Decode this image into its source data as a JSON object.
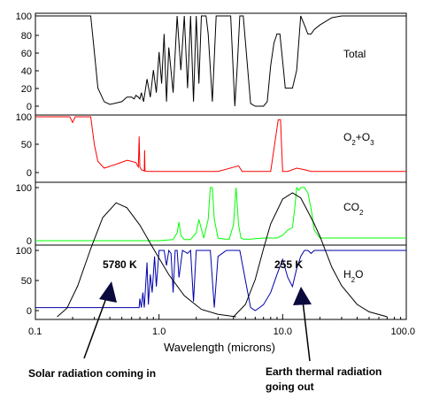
{
  "chart_data": {
    "type": "line",
    "xlabel": "Wavelength (microns)",
    "xscale": "log",
    "xlim": [
      0.1,
      100
    ],
    "xticks": [
      "0.1",
      "1.0",
      "10.0",
      "100.0"
    ],
    "panels": [
      {
        "name": "Total",
        "ylim": [
          0,
          100
        ],
        "yticks": [
          "0",
          "20",
          "40",
          "60",
          "80",
          "100"
        ],
        "color": "#000000",
        "series": {
          "x": [
            0.1,
            0.28,
            0.3,
            0.32,
            0.36,
            0.4,
            0.5,
            0.55,
            0.6,
            0.63,
            0.65,
            0.68,
            0.7,
            0.72,
            0.75,
            0.8,
            0.85,
            0.9,
            0.95,
            1.0,
            1.05,
            1.1,
            1.15,
            1.2,
            1.3,
            1.4,
            1.5,
            1.6,
            1.7,
            1.8,
            1.9,
            2.0,
            2.1,
            2.2,
            2.4,
            2.5,
            2.7,
            2.9,
            3.2,
            3.5,
            3.8,
            4.1,
            4.3,
            4.5,
            4.8,
            5.5,
            6.0,
            6.5,
            7.0,
            7.5,
            8.0,
            8.5,
            9.0,
            9.5,
            10.0,
            10.5,
            11,
            12,
            13,
            14,
            15,
            16,
            17,
            18,
            20,
            25,
            30,
            40,
            70,
            100
          ],
          "values": [
            100,
            100,
            60,
            20,
            5,
            2,
            5,
            10,
            10,
            8,
            12,
            10,
            8,
            15,
            5,
            30,
            10,
            40,
            15,
            60,
            25,
            80,
            5,
            65,
            15,
            100,
            40,
            100,
            20,
            100,
            5,
            100,
            25,
            100,
            100,
            80,
            5,
            100,
            100,
            100,
            100,
            0,
            45,
            100,
            100,
            3,
            0,
            0,
            0,
            5,
            45,
            70,
            80,
            80,
            50,
            20,
            20,
            20,
            40,
            100,
            90,
            80,
            80,
            85,
            90,
            98,
            100,
            100,
            100,
            100
          ]
        }
      },
      {
        "name": "O2+O3",
        "ylim": [
          0,
          100
        ],
        "yticks": [
          "0",
          "50",
          "100"
        ],
        "color": "#ff0000",
        "series": {
          "x": [
            0.1,
            0.19,
            0.2,
            0.21,
            0.28,
            0.3,
            0.32,
            0.36,
            0.45,
            0.55,
            0.6,
            0.65,
            0.68,
            0.69,
            0.7,
            0.72,
            0.76,
            0.765,
            0.77,
            0.8,
            1.0,
            2.0,
            3.0,
            4.4,
            4.7,
            5.0,
            8.0,
            9.2,
            9.6,
            10.0,
            11,
            13,
            15,
            17,
            20,
            50,
            100
          ],
          "values": [
            100,
            100,
            90,
            100,
            100,
            50,
            20,
            8,
            15,
            22,
            20,
            18,
            10,
            65,
            10,
            5,
            3,
            40,
            3,
            2,
            2,
            2,
            2,
            12,
            2,
            2,
            2,
            95,
            95,
            2,
            2,
            8,
            5,
            2,
            2,
            2,
            2
          ]
        }
      },
      {
        "name": "CO2",
        "ylim": [
          0,
          100
        ],
        "yticks": [
          "0",
          "100"
        ],
        "color": "#00ff00",
        "series": {
          "x": [
            0.1,
            1.0,
            1.3,
            1.4,
            1.45,
            1.5,
            1.6,
            1.8,
            2.0,
            2.1,
            2.3,
            2.5,
            2.6,
            2.7,
            2.8,
            3.0,
            3.4,
            3.7,
            4.0,
            4.2,
            4.4,
            4.6,
            4.8,
            5.5,
            7.0,
            9.0,
            10,
            11,
            12,
            12.5,
            13,
            13.5,
            14,
            15,
            16,
            17,
            18,
            20,
            50,
            100
          ],
          "values": [
            0,
            0,
            2,
            15,
            35,
            10,
            2,
            2,
            15,
            40,
            5,
            40,
            100,
            100,
            40,
            5,
            3,
            3,
            30,
            100,
            30,
            5,
            3,
            3,
            5,
            5,
            10,
            20,
            25,
            60,
            100,
            95,
            100,
            100,
            90,
            60,
            20,
            5,
            5,
            5
          ]
        }
      },
      {
        "name": "H2O",
        "ylim": [
          0,
          100
        ],
        "yticks": [
          "0",
          "50",
          "100"
        ],
        "color": "#0000aa",
        "series": {
          "x": [
            0.1,
            0.69,
            0.7,
            0.72,
            0.74,
            0.76,
            0.8,
            0.82,
            0.85,
            0.88,
            0.92,
            0.95,
            1.0,
            1.1,
            1.15,
            1.2,
            1.25,
            1.3,
            1.35,
            1.4,
            1.45,
            1.55,
            1.7,
            1.8,
            1.9,
            2.0,
            2.1,
            2.3,
            2.6,
            2.8,
            3.0,
            3.5,
            4.0,
            4.5,
            5.0,
            5.5,
            6.0,
            6.5,
            7,
            8,
            9,
            10,
            11,
            12,
            13,
            14,
            15,
            16,
            17,
            18,
            20,
            25,
            30,
            50,
            100
          ],
          "values": [
            5,
            5,
            20,
            5,
            30,
            5,
            80,
            10,
            60,
            30,
            90,
            40,
            100,
            100,
            75,
            100,
            95,
            30,
            100,
            100,
            55,
            100,
            95,
            100,
            15,
            100,
            100,
            100,
            100,
            5,
            90,
            100,
            100,
            100,
            50,
            5,
            0,
            5,
            10,
            30,
            60,
            85,
            55,
            40,
            70,
            90,
            100,
            100,
            95,
            100,
            100,
            100,
            100,
            100,
            100
          ]
        }
      }
    ],
    "blackbody": [
      {
        "name": "Solar",
        "x": [
          0.15,
          0.18,
          0.22,
          0.28,
          0.35,
          0.45,
          0.55,
          0.7,
          0.9,
          1.2,
          1.6,
          2.2,
          3.0,
          4.2
        ],
        "values": [
          0,
          7,
          25,
          55,
          80,
          92,
          88,
          74,
          55,
          34,
          17,
          6,
          2,
          0
        ]
      },
      {
        "name": "Earth",
        "x": [
          4,
          5,
          6,
          7,
          8,
          10,
          12,
          14,
          16,
          18,
          20,
          25,
          30,
          40,
          50,
          70
        ],
        "values": [
          0,
          10,
          30,
          55,
          75,
          95,
          100,
          96,
          85,
          75,
          65,
          40,
          25,
          10,
          4,
          0
        ]
      }
    ],
    "annotations": [
      {
        "text": "5780 K"
      },
      {
        "text": "255 K"
      },
      {
        "text": "Solar radiation coming in"
      },
      {
        "text": "Earth thermal radiation"
      },
      {
        "text": "going out"
      }
    ]
  }
}
